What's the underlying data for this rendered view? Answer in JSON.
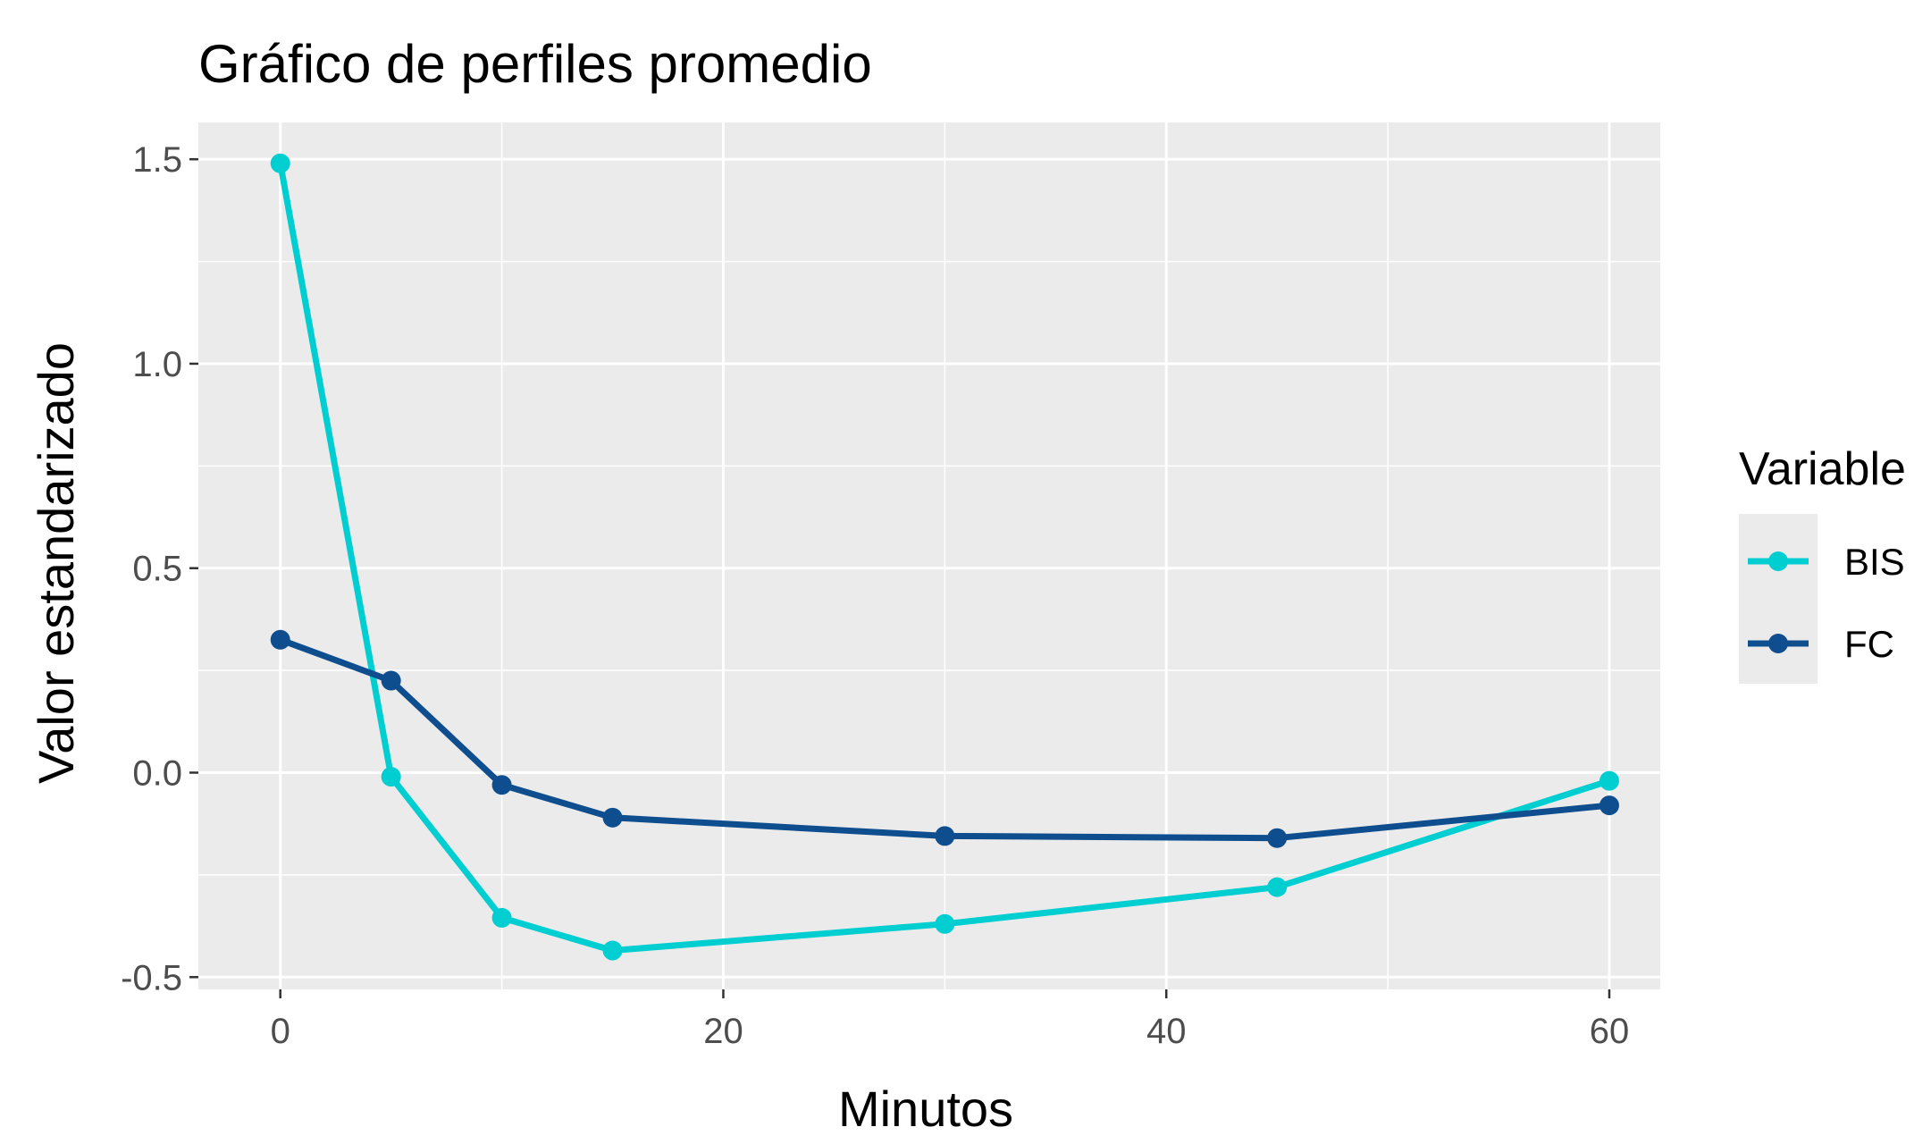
{
  "chart_data": {
    "type": "line",
    "title": "Gráfico de perfiles promedio",
    "xlabel": "Minutos",
    "ylabel": "Valor estandarizado",
    "xlim": [
      -3.7,
      62.3
    ],
    "ylim": [
      -0.53,
      1.59
    ],
    "x_ticks": [
      0,
      20,
      40,
      60
    ],
    "x_tick_labels": [
      "0",
      "20",
      "40",
      "60"
    ],
    "x_minor_ticks": [
      10,
      30,
      50
    ],
    "y_ticks": [
      -0.5,
      0.0,
      0.5,
      1.0,
      1.5
    ],
    "y_tick_labels": [
      "-0.5",
      "0.0",
      "0.5",
      "1.0",
      "1.5"
    ],
    "y_minor_ticks": [
      -0.25,
      0.25,
      0.75,
      1.25
    ],
    "grid": true,
    "panel_background": "#ebebeb",
    "grid_color": "#ffffff",
    "legend": {
      "title": "Variable",
      "placement": "right"
    },
    "series": [
      {
        "name": "BIS",
        "color": "#00ced1",
        "x": [
          0,
          5,
          10,
          15,
          30,
          45,
          60
        ],
        "y": [
          1.49,
          -0.01,
          -0.355,
          -0.435,
          -0.37,
          -0.28,
          -0.02
        ]
      },
      {
        "name": "FC",
        "color": "#0e4d8e",
        "x": [
          0,
          5,
          10,
          15,
          30,
          45,
          60
        ],
        "y": [
          0.325,
          0.225,
          -0.03,
          -0.11,
          -0.155,
          -0.16,
          -0.08
        ]
      }
    ]
  }
}
